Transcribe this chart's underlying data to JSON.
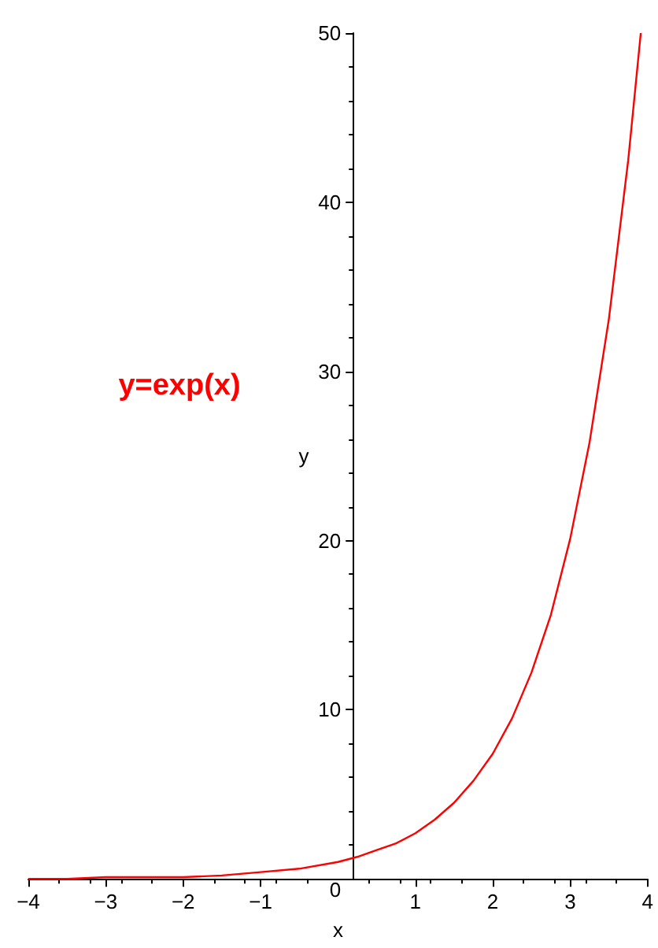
{
  "chart_data": {
    "type": "line",
    "xlabel": "x",
    "ylabel": "y",
    "annotations": [
      "y=exp(x)"
    ],
    "x": [
      -4,
      -3.5,
      -3,
      -2.5,
      -2,
      -1.5,
      -1,
      -0.5,
      0,
      0.25,
      0.5,
      0.75,
      1,
      1.25,
      1.5,
      1.75,
      2,
      2.25,
      2.5,
      2.75,
      3,
      3.25,
      3.5,
      3.75,
      3.912
    ],
    "series": [
      {
        "color": "#ff0000",
        "values": [
          0,
          0,
          0.1,
          0.1,
          0.1,
          0.2,
          0.4,
          0.6,
          1,
          1.3,
          1.7,
          2.1,
          2.7,
          3.5,
          4.5,
          5.8,
          7.4,
          9.5,
          12.2,
          15.6,
          20.1,
          25.8,
          33.1,
          42.5,
          50
        ]
      }
    ],
    "xlim": [
      -4,
      4
    ],
    "ylim": [
      0,
      50
    ],
    "xticks": [
      {
        "value": -4,
        "label": "−4"
      },
      {
        "value": -3,
        "label": "−3"
      },
      {
        "value": -2,
        "label": "−2"
      },
      {
        "value": -1,
        "label": "−1"
      },
      1,
      2,
      3,
      4
    ],
    "yticks": [
      0,
      10,
      20,
      30,
      40,
      50
    ],
    "grid": false,
    "marker": "none",
    "line_style": "solid"
  }
}
